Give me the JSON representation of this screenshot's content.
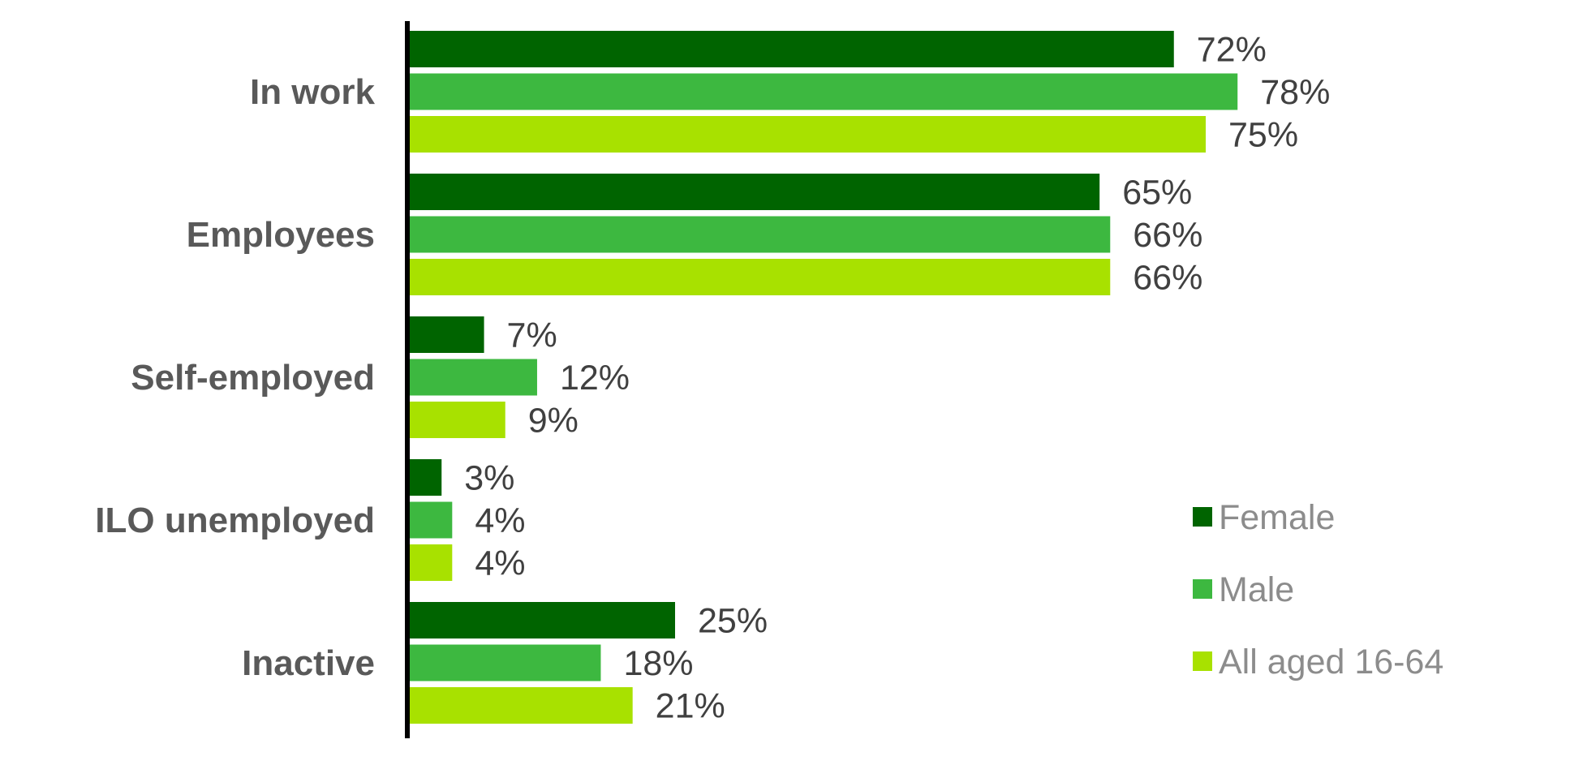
{
  "chart_data": {
    "type": "bar",
    "orientation": "horizontal",
    "categories": [
      "In work",
      "Employees",
      "Self-employed",
      "ILO unemployed",
      "Inactive"
    ],
    "series": [
      {
        "name": "Female",
        "color": "#006400",
        "values": [
          72,
          65,
          7,
          3,
          25
        ],
        "labels": [
          "72%",
          "65%",
          "7%",
          "3%",
          "25%"
        ]
      },
      {
        "name": "Male",
        "color": "#3db840",
        "values": [
          78,
          66,
          12,
          4,
          18
        ],
        "labels": [
          "78%",
          "66%",
          "12%",
          "4%",
          "18%"
        ]
      },
      {
        "name": "All aged 16-64",
        "color": "#a8e100",
        "values": [
          75,
          66,
          9,
          4,
          21
        ],
        "labels": [
          "75%",
          "66%",
          "9%",
          "4%",
          "21%"
        ]
      }
    ],
    "value_unit": "%",
    "xlim": [
      0,
      100
    ],
    "grid": false,
    "legend_position": "bottom-right",
    "title": "",
    "xlabel": "",
    "ylabel": ""
  }
}
